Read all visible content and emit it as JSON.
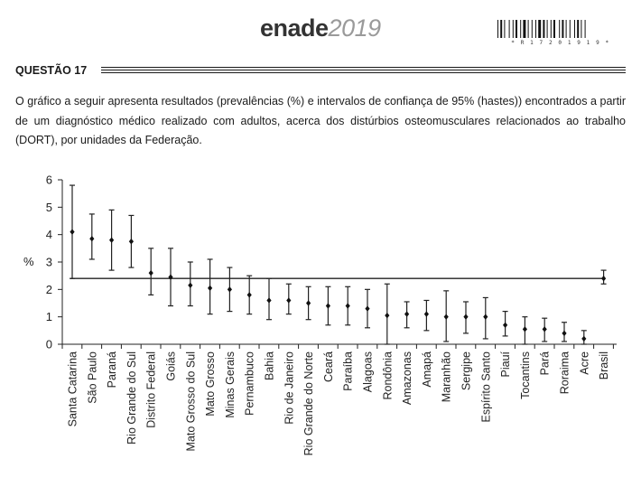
{
  "header": {
    "logo_brand": "enade",
    "logo_year": "2019",
    "barcode_text": "* R 1 7 2 0 1 9 1 9 *"
  },
  "question": {
    "title": "QUESTÃO 17",
    "statement": "O gráfico a seguir apresenta resultados (prevalências (%) e intervalos de confiança de 95% (hastes)) encontrados a partir de um diagnóstico médico realizado com adultos, acerca dos distúrbios osteomusculares relacionados ao trabalho (DORT), por unidades da Federação."
  },
  "chart_data": {
    "type": "scatter",
    "ylabel": "%",
    "ylim": [
      0,
      6
    ],
    "yticks": [
      "0",
      "1",
      "2",
      "3",
      "4",
      "5",
      "6"
    ],
    "reference_line": 2.4,
    "categories": [
      "Santa Catarina",
      "São Paulo",
      "Paraná",
      "Rio Grande do Sul",
      "Distrito Federal",
      "Goiás",
      "Mato Grosso do Sul",
      "Mato Grosso",
      "Minas Gerais",
      "Pernambuco",
      "Bahia",
      "Rio de Janeiro",
      "Rio Grande do Norte",
      "Ceará",
      "Paraíba",
      "Alagoas",
      "Rondônia",
      "Amazonas",
      "Amapá",
      "Maranhão",
      "Sergipe",
      "Espírito Santo",
      "Piauí",
      "Tocantins",
      "Pará",
      "Roraima",
      "Acre",
      "Brasil"
    ],
    "values": [
      4.1,
      3.85,
      3.8,
      3.75,
      2.6,
      2.45,
      2.15,
      2.05,
      2.0,
      1.8,
      1.6,
      1.6,
      1.5,
      1.4,
      1.4,
      1.3,
      1.05,
      1.1,
      1.1,
      1.0,
      1.0,
      1.0,
      0.7,
      0.55,
      0.55,
      0.4,
      0.2,
      2.4
    ],
    "ci_low": [
      2.4,
      3.1,
      2.7,
      2.8,
      1.8,
      1.4,
      1.4,
      1.1,
      1.2,
      1.1,
      0.9,
      1.1,
      0.9,
      0.7,
      0.7,
      0.6,
      0.0,
      0.6,
      0.5,
      0.1,
      0.4,
      0.2,
      0.3,
      0.0,
      0.1,
      0.1,
      0.0,
      2.2
    ],
    "ci_high": [
      5.8,
      4.75,
      4.9,
      4.7,
      3.5,
      3.5,
      3.0,
      3.1,
      2.8,
      2.5,
      2.4,
      2.2,
      2.1,
      2.1,
      2.1,
      2.0,
      2.2,
      1.55,
      1.6,
      1.95,
      1.55,
      1.7,
      1.2,
      1.0,
      0.95,
      0.8,
      0.5,
      2.7
    ]
  }
}
